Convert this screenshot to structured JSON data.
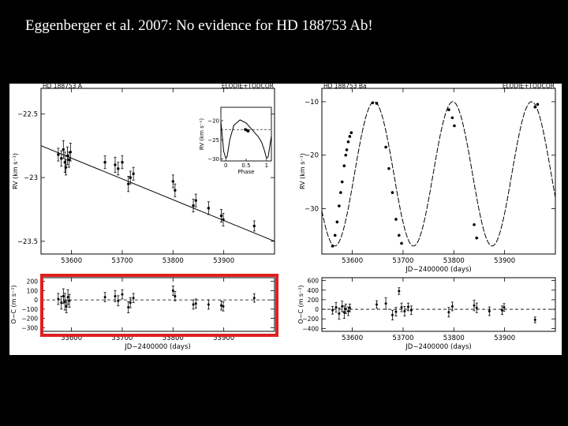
{
  "slide": {
    "title": "Eggenberger et al. 2007: No evidence for HD 188753 Ab!",
    "highlight_color": "#e02020"
  },
  "chart_data": [
    {
      "type": "scatter",
      "panel": "top-left",
      "title": "HD 188753 A",
      "instrument": "ELODIE+TODCOR",
      "xlabel": "",
      "ylabel": "RV (km s⁻¹)",
      "xlim": [
        53540,
        54000
      ],
      "ylim": [
        -23.6,
        -22.3
      ],
      "xticks": [
        53600,
        53700,
        53800,
        53900
      ],
      "xtick_labels": [
        "53600",
        "53700",
        "53800",
        "53900"
      ],
      "yticks": [
        -22.5,
        -23,
        -23.5
      ],
      "ytick_labels": [
        "−22.5",
        "−23",
        "−23.5"
      ],
      "trend": {
        "x": [
          53540,
          54000
        ],
        "y": [
          -22.75,
          -23.5
        ]
      },
      "points": [
        {
          "x": 53574,
          "y": -22.82,
          "err": 0.05
        },
        {
          "x": 53580,
          "y": -22.85,
          "err": 0.06
        },
        {
          "x": 53584,
          "y": -22.78,
          "err": 0.07
        },
        {
          "x": 53587,
          "y": -22.88,
          "err": 0.08
        },
        {
          "x": 53589,
          "y": -22.92,
          "err": 0.06
        },
        {
          "x": 53592,
          "y": -22.83,
          "err": 0.07
        },
        {
          "x": 53595,
          "y": -22.86,
          "err": 0.06
        },
        {
          "x": 53598,
          "y": -22.8,
          "err": 0.07
        },
        {
          "x": 53666,
          "y": -22.88,
          "err": 0.05
        },
        {
          "x": 53686,
          "y": -22.9,
          "err": 0.06
        },
        {
          "x": 53692,
          "y": -22.93,
          "err": 0.05
        },
        {
          "x": 53700,
          "y": -22.88,
          "err": 0.05
        },
        {
          "x": 53712,
          "y": -23.05,
          "err": 0.06
        },
        {
          "x": 53716,
          "y": -23.0,
          "err": 0.05
        },
        {
          "x": 53722,
          "y": -22.97,
          "err": 0.05
        },
        {
          "x": 53800,
          "y": -23.03,
          "err": 0.05
        },
        {
          "x": 53804,
          "y": -23.1,
          "err": 0.05
        },
        {
          "x": 53840,
          "y": -23.22,
          "err": 0.05
        },
        {
          "x": 53845,
          "y": -23.18,
          "err": 0.05
        },
        {
          "x": 53870,
          "y": -23.24,
          "err": 0.05
        },
        {
          "x": 53895,
          "y": -23.3,
          "err": 0.05
        },
        {
          "x": 53899,
          "y": -23.33,
          "err": 0.05
        },
        {
          "x": 53960,
          "y": -23.38,
          "err": 0.04
        }
      ],
      "inset": {
        "xlabel": "Phase",
        "ylabel": "RV (km s⁻¹)",
        "xlim": [
          -0.12,
          1.12
        ],
        "ylim": [
          -30.5,
          -16.5
        ],
        "xticks": [
          0,
          0.5,
          1
        ],
        "xtick_labels": [
          "0",
          "0.5",
          "1"
        ],
        "yticks": [
          -20,
          -25,
          -30
        ],
        "ytick_labels": [
          "−20",
          "−25",
          "−30"
        ],
        "curve_phase": [
          -0.12,
          -0.05,
          0.0,
          0.03,
          0.06,
          0.1,
          0.2,
          0.35,
          0.5,
          0.6,
          0.7,
          0.8,
          0.88,
          0.95,
          1.0,
          1.04,
          1.08,
          1.12
        ],
        "curve_rv": [
          -20.2,
          -28.0,
          -29.8,
          -29.5,
          -27.6,
          -24.8,
          -21.2,
          -19.8,
          -20.6,
          -21.8,
          -23.0,
          -24.2,
          -25.6,
          -27.8,
          -29.8,
          -29.4,
          -26.8,
          -24.0
        ],
        "points": [
          {
            "phase": 0.48,
            "rv": -22.3
          },
          {
            "phase": 0.52,
            "rv": -22.5
          },
          {
            "phase": 0.55,
            "rv": -22.7
          }
        ],
        "hline_rv": -22.3
      }
    },
    {
      "type": "scatter",
      "panel": "bottom-left",
      "xlabel": "JD−2400000 (days)",
      "ylabel": "O−C (m s⁻¹)",
      "xlim": [
        53540,
        54000
      ],
      "ylim": [
        -340,
        240
      ],
      "xticks": [
        53600,
        53700,
        53800,
        53900
      ],
      "xtick_labels": [
        "53600",
        "53700",
        "53800",
        "53900"
      ],
      "yticks": [
        200,
        100,
        0,
        -100,
        -200,
        -300
      ],
      "ytick_labels": [
        "200",
        "100",
        "0",
        "−100",
        "−200",
        "−300"
      ],
      "points": [
        {
          "x": 53574,
          "y": 10,
          "err": 60
        },
        {
          "x": 53580,
          "y": -30,
          "err": 70
        },
        {
          "x": 53584,
          "y": 40,
          "err": 80
        },
        {
          "x": 53587,
          "y": -20,
          "err": 90
        },
        {
          "x": 53590,
          "y": -70,
          "err": 70
        },
        {
          "x": 53593,
          "y": 30,
          "err": 80
        },
        {
          "x": 53596,
          "y": -10,
          "err": 70
        },
        {
          "x": 53666,
          "y": 30,
          "err": 50
        },
        {
          "x": 53686,
          "y": 40,
          "err": 60
        },
        {
          "x": 53692,
          "y": -10,
          "err": 55
        },
        {
          "x": 53700,
          "y": 60,
          "err": 50
        },
        {
          "x": 53712,
          "y": -80,
          "err": 60
        },
        {
          "x": 53716,
          "y": -30,
          "err": 55
        },
        {
          "x": 53722,
          "y": 20,
          "err": 50
        },
        {
          "x": 53800,
          "y": 100,
          "err": 50
        },
        {
          "x": 53804,
          "y": 40,
          "err": 50
        },
        {
          "x": 53840,
          "y": -50,
          "err": 50
        },
        {
          "x": 53845,
          "y": -40,
          "err": 50
        },
        {
          "x": 53870,
          "y": -50,
          "err": 50
        },
        {
          "x": 53895,
          "y": -60,
          "err": 50
        },
        {
          "x": 53899,
          "y": -70,
          "err": 50
        },
        {
          "x": 53960,
          "y": 20,
          "err": 45
        }
      ]
    },
    {
      "type": "line",
      "panel": "top-right",
      "title": "HD 188753 Ba",
      "instrument": "ELODIE+TODCOR",
      "xlabel": "JD−2400000 (days)",
      "ylabel": "RV (km s⁻¹)",
      "xlim": [
        53540,
        54000
      ],
      "ylim": [
        -38.5,
        -7.5
      ],
      "xticks": [
        53600,
        53700,
        53800,
        53900
      ],
      "xtick_labels": [
        "53600",
        "53700",
        "53800",
        "53900"
      ],
      "yticks": [
        -10,
        -20,
        -30
      ],
      "ytick_labels": [
        "−10",
        "−20",
        "−30"
      ],
      "model": {
        "period_days": 155,
        "phase_ref_jd": 53643,
        "max": -10,
        "min": -37
      },
      "points": [
        {
          "x": 53561,
          "y": -37.0
        },
        {
          "x": 53566,
          "y": -35.0
        },
        {
          "x": 53570,
          "y": -32.5
        },
        {
          "x": 53574,
          "y": -29.5
        },
        {
          "x": 53577,
          "y": -27.0
        },
        {
          "x": 53580,
          "y": -25.0
        },
        {
          "x": 53584,
          "y": -22.0
        },
        {
          "x": 53587,
          "y": -20.0
        },
        {
          "x": 53589,
          "y": -19.0
        },
        {
          "x": 53592,
          "y": -17.5
        },
        {
          "x": 53595,
          "y": -16.5
        },
        {
          "x": 53598,
          "y": -15.8
        },
        {
          "x": 53640,
          "y": -10.2
        },
        {
          "x": 53648,
          "y": -10.3
        },
        {
          "x": 53666,
          "y": -18.5
        },
        {
          "x": 53672,
          "y": -22.5
        },
        {
          "x": 53679,
          "y": -27.0
        },
        {
          "x": 53686,
          "y": -32.0
        },
        {
          "x": 53692,
          "y": -35.0
        },
        {
          "x": 53697,
          "y": -36.5
        },
        {
          "x": 53790,
          "y": -11.5
        },
        {
          "x": 53797,
          "y": -13.0
        },
        {
          "x": 53801,
          "y": -14.5
        },
        {
          "x": 53840,
          "y": -33.0
        },
        {
          "x": 53845,
          "y": -35.5
        },
        {
          "x": 53960,
          "y": -11.0
        },
        {
          "x": 53965,
          "y": -10.5
        }
      ]
    },
    {
      "type": "scatter",
      "panel": "bottom-right",
      "xlabel": "JD−2400000 (days)",
      "ylabel": "O−C (m s⁻¹)",
      "xlim": [
        53540,
        54000
      ],
      "ylim": [
        -460,
        660
      ],
      "xticks": [
        53600,
        53700,
        53800,
        53900
      ],
      "xtick_labels": [
        "53600",
        "53700",
        "53800",
        "53900"
      ],
      "yticks": [
        600,
        400,
        200,
        0,
        -200,
        -400
      ],
      "ytick_labels": [
        "600",
        "400",
        "200",
        "0",
        "−200",
        "−400"
      ],
      "points": [
        {
          "x": 53561,
          "y": -20,
          "err": 80
        },
        {
          "x": 53568,
          "y": 40,
          "err": 100
        },
        {
          "x": 53574,
          "y": -90,
          "err": 120
        },
        {
          "x": 53580,
          "y": 60,
          "err": 110
        },
        {
          "x": 53584,
          "y": -60,
          "err": 130
        },
        {
          "x": 53587,
          "y": 10,
          "err": 100
        },
        {
          "x": 53592,
          "y": -40,
          "err": 90
        },
        {
          "x": 53595,
          "y": 30,
          "err": 80
        },
        {
          "x": 53648,
          "y": 100,
          "err": 80
        },
        {
          "x": 53666,
          "y": 120,
          "err": 120
        },
        {
          "x": 53679,
          "y": -120,
          "err": 100
        },
        {
          "x": 53686,
          "y": -50,
          "err": 90
        },
        {
          "x": 53692,
          "y": 380,
          "err": 70
        },
        {
          "x": 53697,
          "y": 40,
          "err": 90
        },
        {
          "x": 53703,
          "y": -40,
          "err": 100
        },
        {
          "x": 53710,
          "y": 50,
          "err": 80
        },
        {
          "x": 53716,
          "y": -20,
          "err": 90
        },
        {
          "x": 53790,
          "y": -60,
          "err": 100
        },
        {
          "x": 53797,
          "y": 60,
          "err": 90
        },
        {
          "x": 53840,
          "y": 80,
          "err": 110
        },
        {
          "x": 53845,
          "y": 30,
          "err": 100
        },
        {
          "x": 53870,
          "y": -40,
          "err": 90
        },
        {
          "x": 53895,
          "y": -20,
          "err": 90
        },
        {
          "x": 53899,
          "y": 40,
          "err": 80
        },
        {
          "x": 53960,
          "y": -220,
          "err": 60
        }
      ]
    }
  ]
}
